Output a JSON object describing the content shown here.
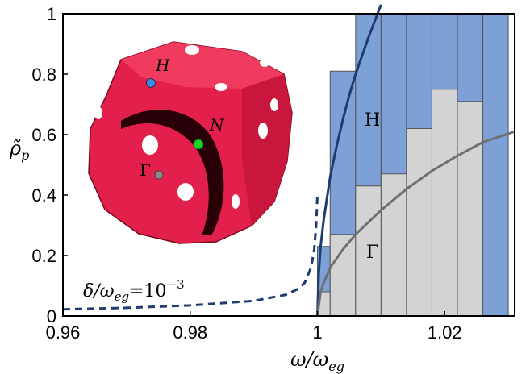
{
  "chart_data": {
    "type": "bar",
    "title": "",
    "xlabel": "ω/ω_eg",
    "ylabel": "ρ̃_p",
    "xlim": [
      0.96,
      1.031
    ],
    "ylim": [
      0,
      1
    ],
    "xticks": [
      "0.96",
      "0.98",
      "1",
      "1.02"
    ],
    "yticks": [
      "0",
      "0.2",
      "0.4",
      "0.6",
      "0.8",
      "1"
    ],
    "grid": false,
    "bins": {
      "edges": [
        1.0,
        1.002,
        1.006,
        1.01,
        1.014,
        1.018,
        1.022,
        1.026,
        1.03
      ],
      "series": [
        {
          "name": "H",
          "color": "#7da0d6",
          "values": [
            0.23,
            0.81,
            1.0,
            1.0,
            1.0,
            1.0,
            1.0,
            1.0
          ]
        },
        {
          "name": "Γ",
          "color": "#d3d3d3",
          "values": [
            0.08,
            0.27,
            0.43,
            0.47,
            0.62,
            0.75,
            0.71,
            null
          ]
        }
      ]
    },
    "curves": [
      {
        "name": "H",
        "color": "#1f3b6f",
        "style": "solid",
        "x": [
          1.0,
          1.0002,
          1.0005,
          1.001,
          1.002,
          1.003,
          1.004,
          1.005,
          1.006,
          1.008,
          1.01
        ],
        "y": [
          0.0,
          0.14,
          0.23,
          0.32,
          0.46,
          0.56,
          0.65,
          0.73,
          0.8,
          0.92,
          1.03
        ]
      },
      {
        "name": "Γ",
        "color": "#707070",
        "style": "solid",
        "x": [
          1.0,
          1.0005,
          1.001,
          1.002,
          1.004,
          1.006,
          1.008,
          1.01,
          1.014,
          1.018,
          1.022,
          1.026,
          1.031
        ],
        "y": [
          0.0,
          0.08,
          0.11,
          0.16,
          0.22,
          0.27,
          0.31,
          0.35,
          0.42,
          0.48,
          0.53,
          0.575,
          0.61
        ]
      },
      {
        "name": "δ/ω_eg=10⁻³",
        "color": "#1f3b6f",
        "style": "dashed",
        "x": [
          0.96,
          0.97,
          0.98,
          0.99,
          0.995,
          0.997,
          0.998,
          0.999,
          0.9995,
          0.9998,
          1.0
        ],
        "y": [
          0.022,
          0.027,
          0.035,
          0.05,
          0.07,
          0.09,
          0.11,
          0.16,
          0.22,
          0.3,
          0.4
        ]
      }
    ],
    "annotations": {
      "H_label": "H",
      "Gamma_label": "Γ",
      "delta_label_lhs": "δ/ω",
      "delta_label_sub": "eg",
      "delta_label_eq": "=10",
      "delta_label_exp": "−3"
    },
    "inset": {
      "description_points": [
        "H",
        "N",
        "Γ"
      ],
      "colors": {
        "surface": "#e8204a",
        "shadow": "#2a0008",
        "H": "#3a8de0",
        "N": "#19d31f",
        "Gamma": "#8a8a8a"
      }
    }
  }
}
